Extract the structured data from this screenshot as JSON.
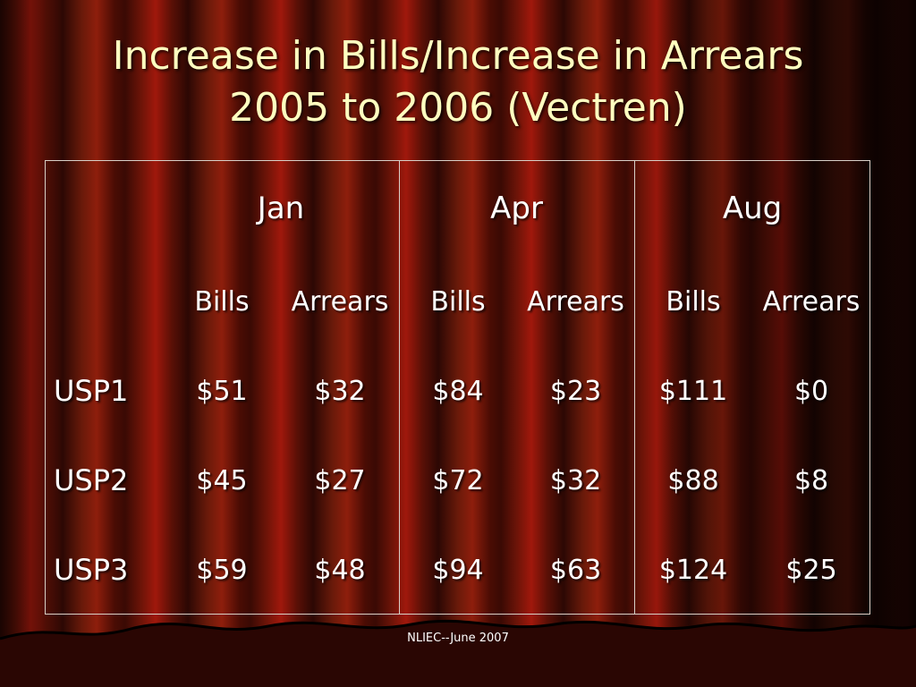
{
  "title": {
    "line1": "Increase in Bills/Increase in Arrears",
    "line2": "2005 to 2006 (Vectren)"
  },
  "table": {
    "months": [
      "Jan",
      "Apr",
      "Aug"
    ],
    "subheaders": [
      "Bills",
      "Arrears",
      "Bills",
      "Arrears",
      "Bills",
      "Arrears"
    ],
    "rows": [
      {
        "label": "USP1",
        "values": [
          "$51",
          "$32",
          "$84",
          "$23",
          "$111",
          "$0"
        ]
      },
      {
        "label": "USP2",
        "values": [
          "$45",
          "$27",
          "$72",
          "$32",
          "$88",
          "$8"
        ]
      },
      {
        "label": "USP3",
        "values": [
          "$59",
          "$48",
          "$94",
          "$63",
          "$124",
          "$25"
        ]
      }
    ]
  },
  "footer": "NLIEC--June 2007",
  "colors": {
    "title_text": "#ffffc0",
    "body_text": "#ffffff",
    "curtain_red": "#a0180c",
    "curtain_dark": "#3a0a04",
    "grid_line": "#d8d0c8"
  }
}
